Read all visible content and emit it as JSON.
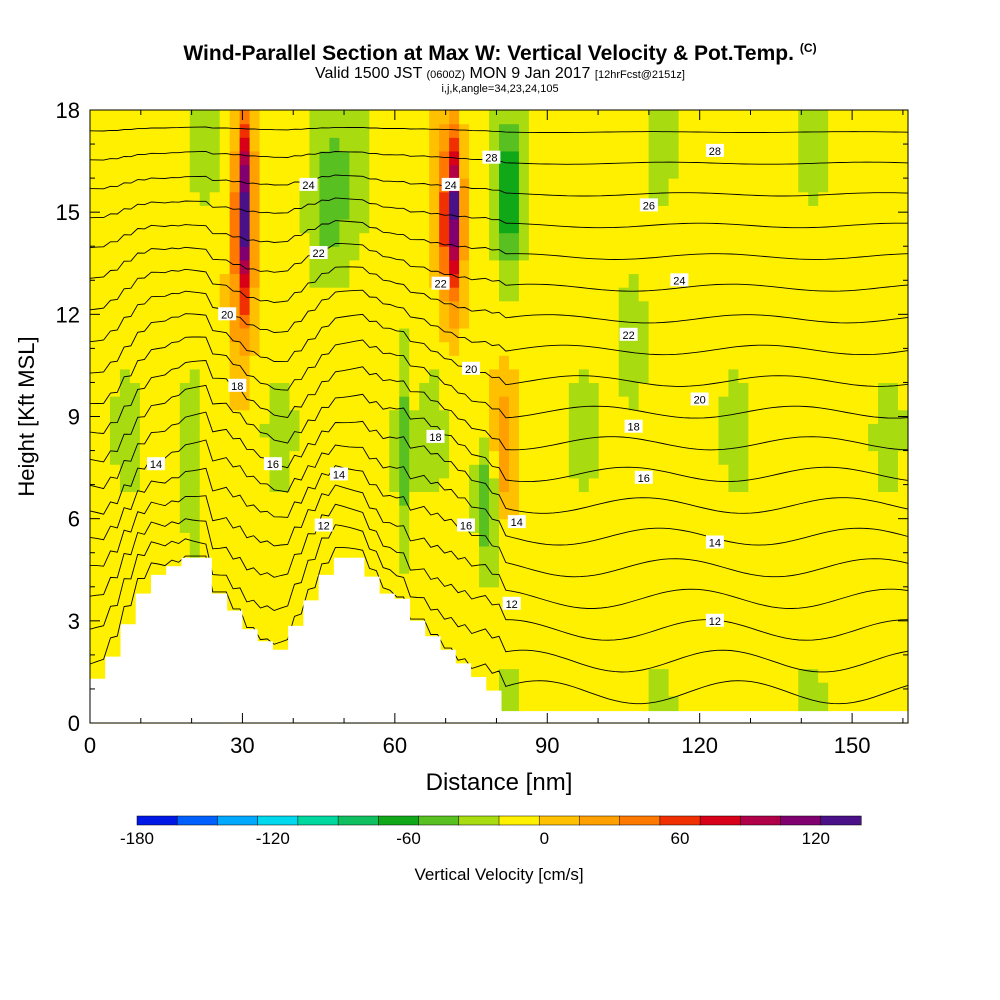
{
  "chart_data": {
    "type": "heatmap",
    "title": "Wind-Parallel Section at Max W: Vertical Velocity & Pot.Temp.",
    "title_mark": "(C)",
    "subtitle_parts": {
      "valid": "Valid 1500 JST",
      "utc": "(0600Z)",
      "date": "MON 9 Jan 2017",
      "forecast": "[12hrFcst@2151z]"
    },
    "subtitle2": "i,j,k,angle=34,23,24,105",
    "xlabel": "Distance [nm]",
    "ylabel": "Height [Kft MSL]",
    "xlim": [
      0,
      161
    ],
    "ylim": [
      0,
      18
    ],
    "x_ticks": [
      "0",
      "30",
      "60",
      "90",
      "120",
      "150"
    ],
    "y_ticks": [
      "0",
      "3",
      "6",
      "9",
      "12",
      "15",
      "18"
    ],
    "colorbar": {
      "label": "Vertical Velocity [cm/s]",
      "ticks": [
        "-180",
        "-120",
        "-60",
        "0",
        "60",
        "120"
      ],
      "range": [
        -180,
        140
      ],
      "step": 20,
      "colors": [
        "#0018e6",
        "#0060ff",
        "#00a8ff",
        "#00d8ee",
        "#00d8a0",
        "#10c060",
        "#10a818",
        "#58c020",
        "#a8dc10",
        "#fff000",
        "#ffc000",
        "#ffa000",
        "#ff7800",
        "#f03000",
        "#d80018",
        "#b00048",
        "#800070",
        "#4a1088"
      ]
    },
    "terrain_profile": {
      "x": [
        0,
        3,
        3,
        6,
        6,
        9,
        9,
        12,
        12,
        15,
        15,
        18,
        18,
        21,
        21,
        24,
        24,
        27,
        27,
        30,
        30,
        33,
        33,
        36,
        36,
        39,
        39,
        42,
        42,
        45,
        45,
        48,
        48,
        51,
        51,
        54,
        54,
        57,
        57,
        60,
        60,
        63,
        63,
        66,
        66,
        69,
        69,
        72,
        72,
        75,
        75,
        78,
        78,
        81,
        81,
        84,
        84,
        161
      ],
      "y": [
        1.3,
        1.3,
        1.95,
        1.95,
        2.9,
        2.9,
        3.8,
        3.8,
        4.35,
        4.35,
        4.6,
        4.6,
        4.85,
        4.85,
        4.85,
        4.85,
        3.8,
        3.8,
        3.3,
        3.3,
        2.75,
        2.75,
        2.4,
        2.4,
        2.15,
        2.15,
        2.85,
        2.85,
        3.6,
        3.6,
        4.35,
        4.35,
        4.85,
        4.85,
        4.85,
        4.85,
        4.3,
        4.3,
        3.8,
        3.8,
        3.65,
        3.65,
        3.0,
        3.0,
        2.55,
        2.55,
        2.15,
        2.15,
        1.75,
        1.75,
        1.35,
        1.35,
        0.95,
        0.95,
        0.35,
        0.35,
        0.35,
        0.35
      ]
    },
    "w_features": [
      {
        "x0": 27,
        "x1": 33,
        "y0": 10,
        "y1": 18,
        "w": 70
      },
      {
        "x0": 29,
        "x1": 32,
        "y0": 12.5,
        "y1": 18,
        "w": 100
      },
      {
        "x0": 68,
        "x1": 74,
        "y0": 11,
        "y1": 18,
        "w": 70
      },
      {
        "x0": 70,
        "x1": 73,
        "y0": 13,
        "y1": 17.5,
        "w": 90
      },
      {
        "x0": 78,
        "x1": 84,
        "y0": 6,
        "y1": 10,
        "w": 50
      },
      {
        "x0": 80,
        "x1": 85,
        "y0": 13,
        "y1": 18,
        "w": -60
      },
      {
        "x0": 76,
        "x1": 81,
        "y0": 4.5,
        "y1": 9,
        "w": -60
      },
      {
        "x0": 42,
        "x1": 52,
        "y0": 13,
        "y1": 18,
        "w": -40
      },
      {
        "x0": 18,
        "x1": 22,
        "y0": 5,
        "y1": 11,
        "w": -40
      },
      {
        "x0": 60,
        "x1": 63,
        "y0": 5,
        "y1": 11,
        "w": -40
      },
      {
        "x0": 104,
        "x1": 110,
        "y0": 9,
        "y1": 13,
        "w": -30
      }
    ],
    "theta_levels": [
      12,
      14,
      16,
      18,
      20,
      22,
      24,
      26,
      28
    ],
    "theta_labels": [
      {
        "text": "14",
        "x": 13,
        "y": 7.6
      },
      {
        "text": "16",
        "x": 36,
        "y": 7.6
      },
      {
        "text": "14",
        "x": 49,
        "y": 7.3
      },
      {
        "text": "12",
        "x": 46,
        "y": 5.8
      },
      {
        "text": "18",
        "x": 29,
        "y": 9.9
      },
      {
        "text": "20",
        "x": 27,
        "y": 12.0
      },
      {
        "text": "22",
        "x": 45,
        "y": 13.8
      },
      {
        "text": "24",
        "x": 43,
        "y": 15.8
      },
      {
        "text": "16",
        "x": 74,
        "y": 5.8
      },
      {
        "text": "14",
        "x": 84,
        "y": 5.9
      },
      {
        "text": "12",
        "x": 83,
        "y": 3.5
      },
      {
        "text": "18",
        "x": 68,
        "y": 8.4
      },
      {
        "text": "20",
        "x": 75,
        "y": 10.4
      },
      {
        "text": "22",
        "x": 69,
        "y": 12.9
      },
      {
        "text": "24",
        "x": 71,
        "y": 15.8
      },
      {
        "text": "28",
        "x": 79,
        "y": 16.6
      },
      {
        "text": "12",
        "x": 123,
        "y": 3.0
      },
      {
        "text": "14",
        "x": 123,
        "y": 5.3
      },
      {
        "text": "16",
        "x": 109,
        "y": 7.2
      },
      {
        "text": "18",
        "x": 107,
        "y": 8.7
      },
      {
        "text": "20",
        "x": 120,
        "y": 9.5
      },
      {
        "text": "22",
        "x": 106,
        "y": 11.4
      },
      {
        "text": "24",
        "x": 116,
        "y": 13.0
      },
      {
        "text": "26",
        "x": 110,
        "y": 15.2
      },
      {
        "text": "28",
        "x": 123,
        "y": 16.8
      }
    ]
  }
}
